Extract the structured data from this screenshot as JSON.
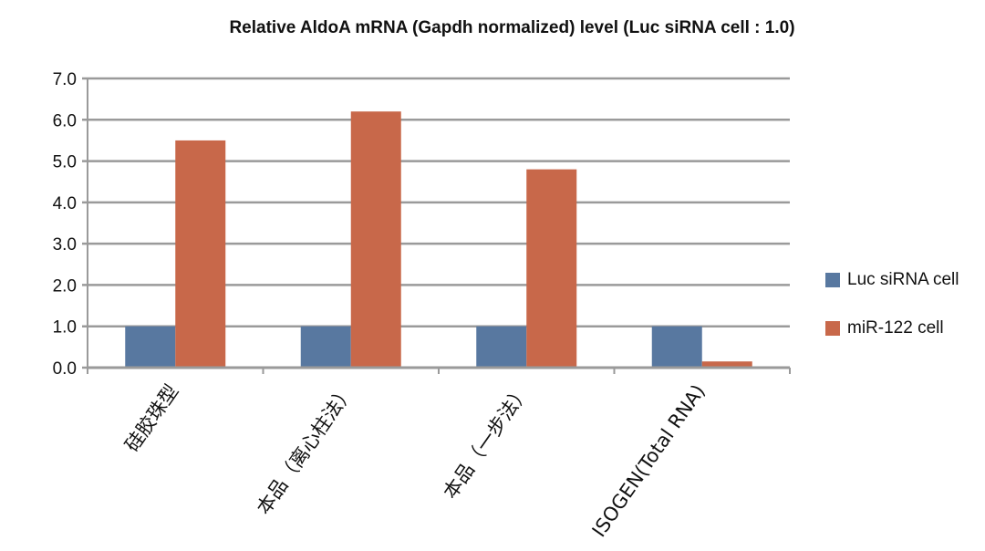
{
  "chart_data": {
    "type": "bar",
    "title": "Relative AldoA mRNA (Gapdh normalized)  level (Luc siRNA cell : 1.0)",
    "categories": [
      "硅胶珠型",
      "本品（离心柱法）",
      "本品（一步法）",
      "ISOGEN(Total RNA)"
    ],
    "series": [
      {
        "name": "Luc siRNA cell",
        "color": "#5878a0",
        "values": [
          1.0,
          1.0,
          1.0,
          1.0
        ]
      },
      {
        "name": "miR-122 cell",
        "color": "#c8684a",
        "values": [
          5.5,
          6.2,
          4.8,
          0.15
        ]
      }
    ],
    "ylim": [
      0,
      7
    ],
    "yticks": [
      "0.0",
      "1.0",
      "2.0",
      "3.0",
      "4.0",
      "5.0",
      "6.0",
      "7.0"
    ],
    "xlabel": "",
    "ylabel": "",
    "grid": true,
    "legend": "right"
  }
}
